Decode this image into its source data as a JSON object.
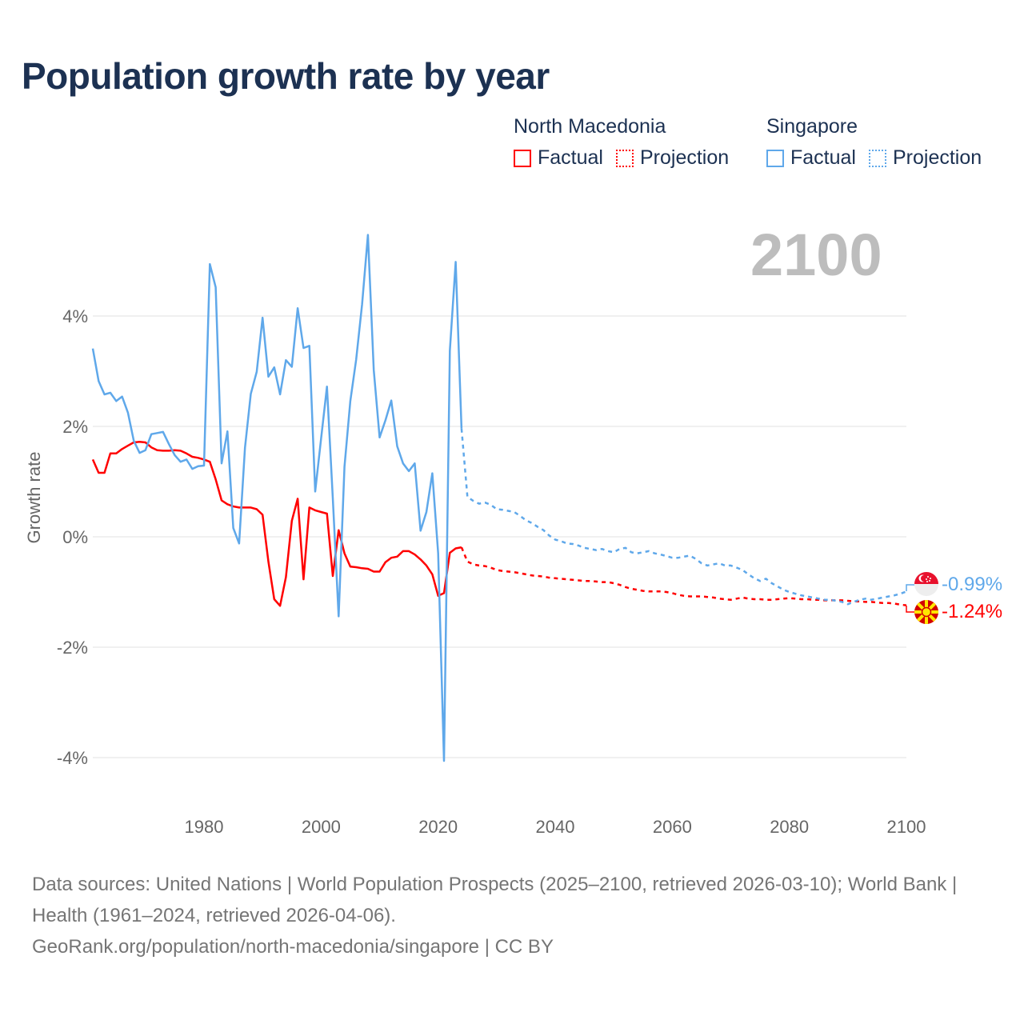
{
  "title": "Population growth rate by year",
  "legend": {
    "groups": [
      {
        "name": "North Macedonia",
        "color": "#ff0000",
        "factual": "Factual",
        "projection": "Projection"
      },
      {
        "name": "Singapore",
        "color": "#5fa8ea",
        "factual": "Factual",
        "projection": "Projection"
      }
    ]
  },
  "current_year": "2100",
  "end_labels": {
    "singapore": "-0.99%",
    "north_macedonia": "-1.24%"
  },
  "footer": {
    "sources": "Data sources: United Nations | World Population Prospects (2025–2100, retrieved 2026-03-10); World Bank | Health (1961–2024, retrieved 2026-04-06).",
    "link": "GeoRank.org/population/north-macedonia/singapore | CC BY"
  },
  "chart_data": {
    "type": "line",
    "title": "Population growth rate by year",
    "xlabel": "",
    "ylabel": "Growth rate",
    "xlim": [
      1961,
      2100
    ],
    "ylim": [
      -4.5,
      5.5
    ],
    "x_ticks": [
      "1980",
      "2000",
      "2020",
      "2040",
      "2060",
      "2080",
      "2100"
    ],
    "y_ticks": [
      "4%",
      "2%",
      "0%",
      "-2%",
      "-4%"
    ],
    "y_tick_values": [
      4,
      2,
      0,
      -2,
      -4
    ],
    "x_tick_values": [
      1980,
      2000,
      2020,
      2040,
      2060,
      2080,
      2100
    ],
    "grid": true,
    "legend_position": "top-right",
    "series": [
      {
        "name": "North Macedonia Factual",
        "color": "#ff0000",
        "dashed": false,
        "start_year": 1961,
        "values": [
          1.4,
          1.16,
          1.16,
          1.51,
          1.51,
          1.59,
          1.65,
          1.71,
          1.72,
          1.71,
          1.62,
          1.57,
          1.56,
          1.56,
          1.57,
          1.56,
          1.51,
          1.45,
          1.43,
          1.4,
          1.36,
          1.04,
          0.66,
          0.59,
          0.55,
          0.53,
          0.53,
          0.53,
          0.5,
          0.4,
          -0.45,
          -1.13,
          -1.25,
          -0.73,
          0.29,
          0.69,
          -0.77,
          0.53,
          0.48,
          0.45,
          0.42,
          -0.71,
          0.12,
          -0.3,
          -0.54,
          -0.55,
          -0.57,
          -0.58,
          -0.63,
          -0.63,
          -0.46,
          -0.38,
          -0.36,
          -0.26,
          -0.26,
          -0.32,
          -0.41,
          -0.52,
          -0.68,
          -1.07,
          -1.02,
          -0.29,
          -0.21,
          -0.19
        ]
      },
      {
        "name": "North Macedonia Projection",
        "color": "#ff0000",
        "dashed": true,
        "start_year": 2024,
        "values": [
          -0.19,
          -0.45,
          -0.5,
          -0.52,
          -0.53,
          -0.56,
          -0.6,
          -0.62,
          -0.63,
          -0.64,
          -0.66,
          -0.68,
          -0.7,
          -0.71,
          -0.72,
          -0.74,
          -0.75,
          -0.76,
          -0.77,
          -0.78,
          -0.79,
          -0.8,
          -0.8,
          -0.81,
          -0.82,
          -0.82,
          -0.84,
          -0.87,
          -0.91,
          -0.94,
          -0.96,
          -0.98,
          -0.99,
          -0.99,
          -0.99,
          -1.0,
          -1.02,
          -1.05,
          -1.07,
          -1.08,
          -1.08,
          -1.08,
          -1.09,
          -1.1,
          -1.12,
          -1.13,
          -1.14,
          -1.12,
          -1.1,
          -1.12,
          -1.13,
          -1.13,
          -1.14,
          -1.14,
          -1.13,
          -1.12,
          -1.11,
          -1.12,
          -1.13,
          -1.13,
          -1.14,
          -1.14,
          -1.15,
          -1.15,
          -1.15,
          -1.15,
          -1.16,
          -1.17,
          -1.17,
          -1.18,
          -1.18,
          -1.19,
          -1.2,
          -1.2,
          -1.21,
          -1.23,
          -1.24
        ]
      },
      {
        "name": "Singapore Factual",
        "color": "#5fa8ea",
        "dashed": false,
        "start_year": 1961,
        "values": [
          3.41,
          2.82,
          2.58,
          2.61,
          2.46,
          2.54,
          2.25,
          1.74,
          1.52,
          1.57,
          1.86,
          1.88,
          1.9,
          1.68,
          1.48,
          1.36,
          1.4,
          1.23,
          1.28,
          1.29,
          4.94,
          4.52,
          1.33,
          1.91,
          0.16,
          -0.12,
          1.61,
          2.59,
          2.99,
          3.97,
          2.9,
          3.07,
          2.58,
          3.2,
          3.08,
          4.14,
          3.42,
          3.46,
          0.82,
          1.77,
          2.72,
          0.7,
          -1.44,
          1.27,
          2.46,
          3.21,
          4.21,
          5.47,
          3.02,
          1.8,
          2.11,
          2.47,
          1.64,
          1.33,
          1.19,
          1.33,
          0.11,
          0.45,
          1.15,
          -0.3,
          -4.06,
          3.37,
          4.98,
          1.96
        ]
      },
      {
        "name": "Singapore Projection",
        "color": "#5fa8ea",
        "dashed": true,
        "start_year": 2024,
        "values": [
          1.96,
          0.72,
          0.65,
          0.6,
          0.62,
          0.58,
          0.5,
          0.49,
          0.47,
          0.45,
          0.38,
          0.3,
          0.25,
          0.18,
          0.12,
          0.02,
          -0.05,
          -0.08,
          -0.12,
          -0.13,
          -0.16,
          -0.2,
          -0.22,
          -0.24,
          -0.22,
          -0.26,
          -0.28,
          -0.22,
          -0.2,
          -0.28,
          -0.3,
          -0.28,
          -0.26,
          -0.3,
          -0.32,
          -0.35,
          -0.38,
          -0.38,
          -0.36,
          -0.34,
          -0.4,
          -0.48,
          -0.52,
          -0.5,
          -0.48,
          -0.52,
          -0.52,
          -0.56,
          -0.6,
          -0.68,
          -0.75,
          -0.8,
          -0.76,
          -0.84,
          -0.9,
          -0.96,
          -1.0,
          -1.03,
          -1.06,
          -1.08,
          -1.1,
          -1.12,
          -1.14,
          -1.14,
          -1.16,
          -1.18,
          -1.22,
          -1.18,
          -1.14,
          -1.12,
          -1.14,
          -1.12,
          -1.1,
          -1.08,
          -1.06,
          -1.03,
          -0.99
        ]
      }
    ]
  }
}
